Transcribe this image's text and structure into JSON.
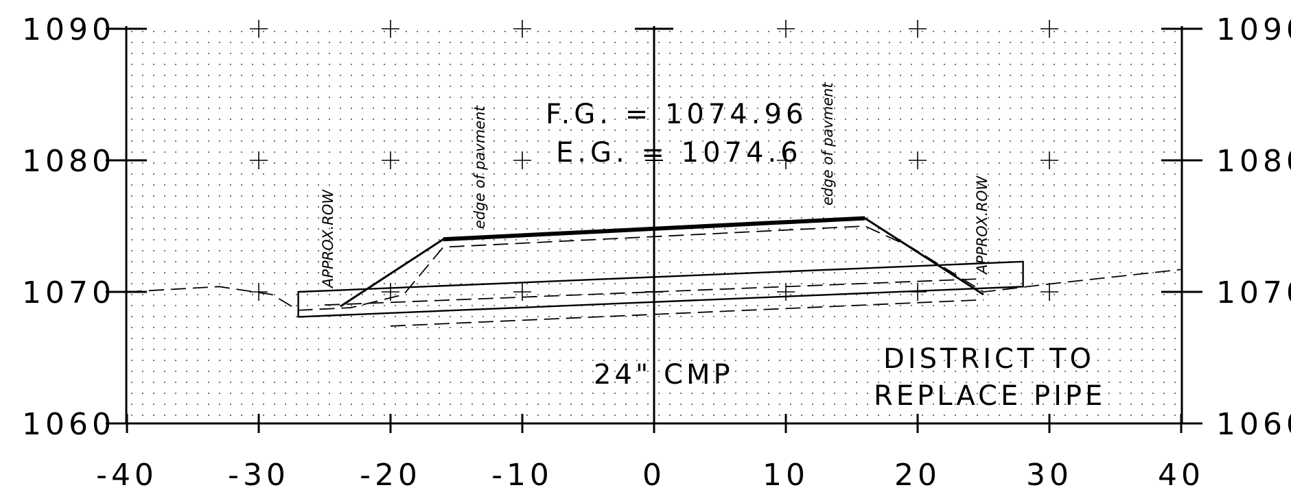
{
  "chart_data": {
    "type": "line",
    "title": "",
    "xlabel": "",
    "ylabel": "",
    "xlim": [
      -40,
      40
    ],
    "ylim": [
      1060,
      1090
    ],
    "x_ticks": [
      -40,
      -30,
      -20,
      -10,
      0,
      10,
      20,
      30,
      40
    ],
    "x_tick_labels": [
      "-40",
      "-30",
      "-20",
      "-10",
      "0",
      "10",
      "20",
      "30",
      "40"
    ],
    "y_ticks": [
      1060,
      1070,
      1080,
      1090
    ],
    "y_tick_labels": [
      "1060",
      "1070",
      "1080",
      "1090"
    ],
    "grid": "dotted",
    "series": [
      {
        "style": "solid-bold",
        "x": [
          -16,
          16
        ],
        "y": [
          1074.0,
          1075.6
        ]
      },
      {
        "style": "solid",
        "x": [
          -23.8,
          -16,
          16,
          25
        ],
        "y": [
          1068.9,
          1074.0,
          1075.6,
          1069.8
        ]
      },
      {
        "style": "dashed",
        "x": [
          -40,
          -33,
          -29,
          -27,
          -23,
          -19,
          -16,
          16,
          19.5,
          25,
          30,
          40
        ],
        "y": [
          1070.0,
          1070.4,
          1069.8,
          1068.6,
          1068.8,
          1069.8,
          1073.4,
          1075.0,
          1073.4,
          1070.0,
          1070.6,
          1071.7
        ]
      },
      {
        "style": "dashed",
        "x": [
          -25,
          25
        ],
        "y": [
          1069.0,
          1071.0
        ]
      },
      {
        "style": "dashed",
        "x": [
          -20,
          25
        ],
        "y": [
          1067.4,
          1069.4
        ]
      },
      {
        "style": "pipe",
        "x": [
          -27,
          28
        ],
        "y_top": [
          1070.0,
          1072.3
        ],
        "y_bottom": [
          1068.1,
          1070.4
        ]
      }
    ]
  },
  "annotations": {
    "fg": "F.G. = 1074.96",
    "eg": "E.G. = 1074.6",
    "pipe": "24\" CMP",
    "district_line1": "DISTRICT TO",
    "district_line2": "REPLACE PIPE",
    "edge_left": "edge of pavment",
    "edge_right": "edge of pavment",
    "row_left": "APPROX.ROW",
    "row_right": "APPROX.ROW"
  }
}
